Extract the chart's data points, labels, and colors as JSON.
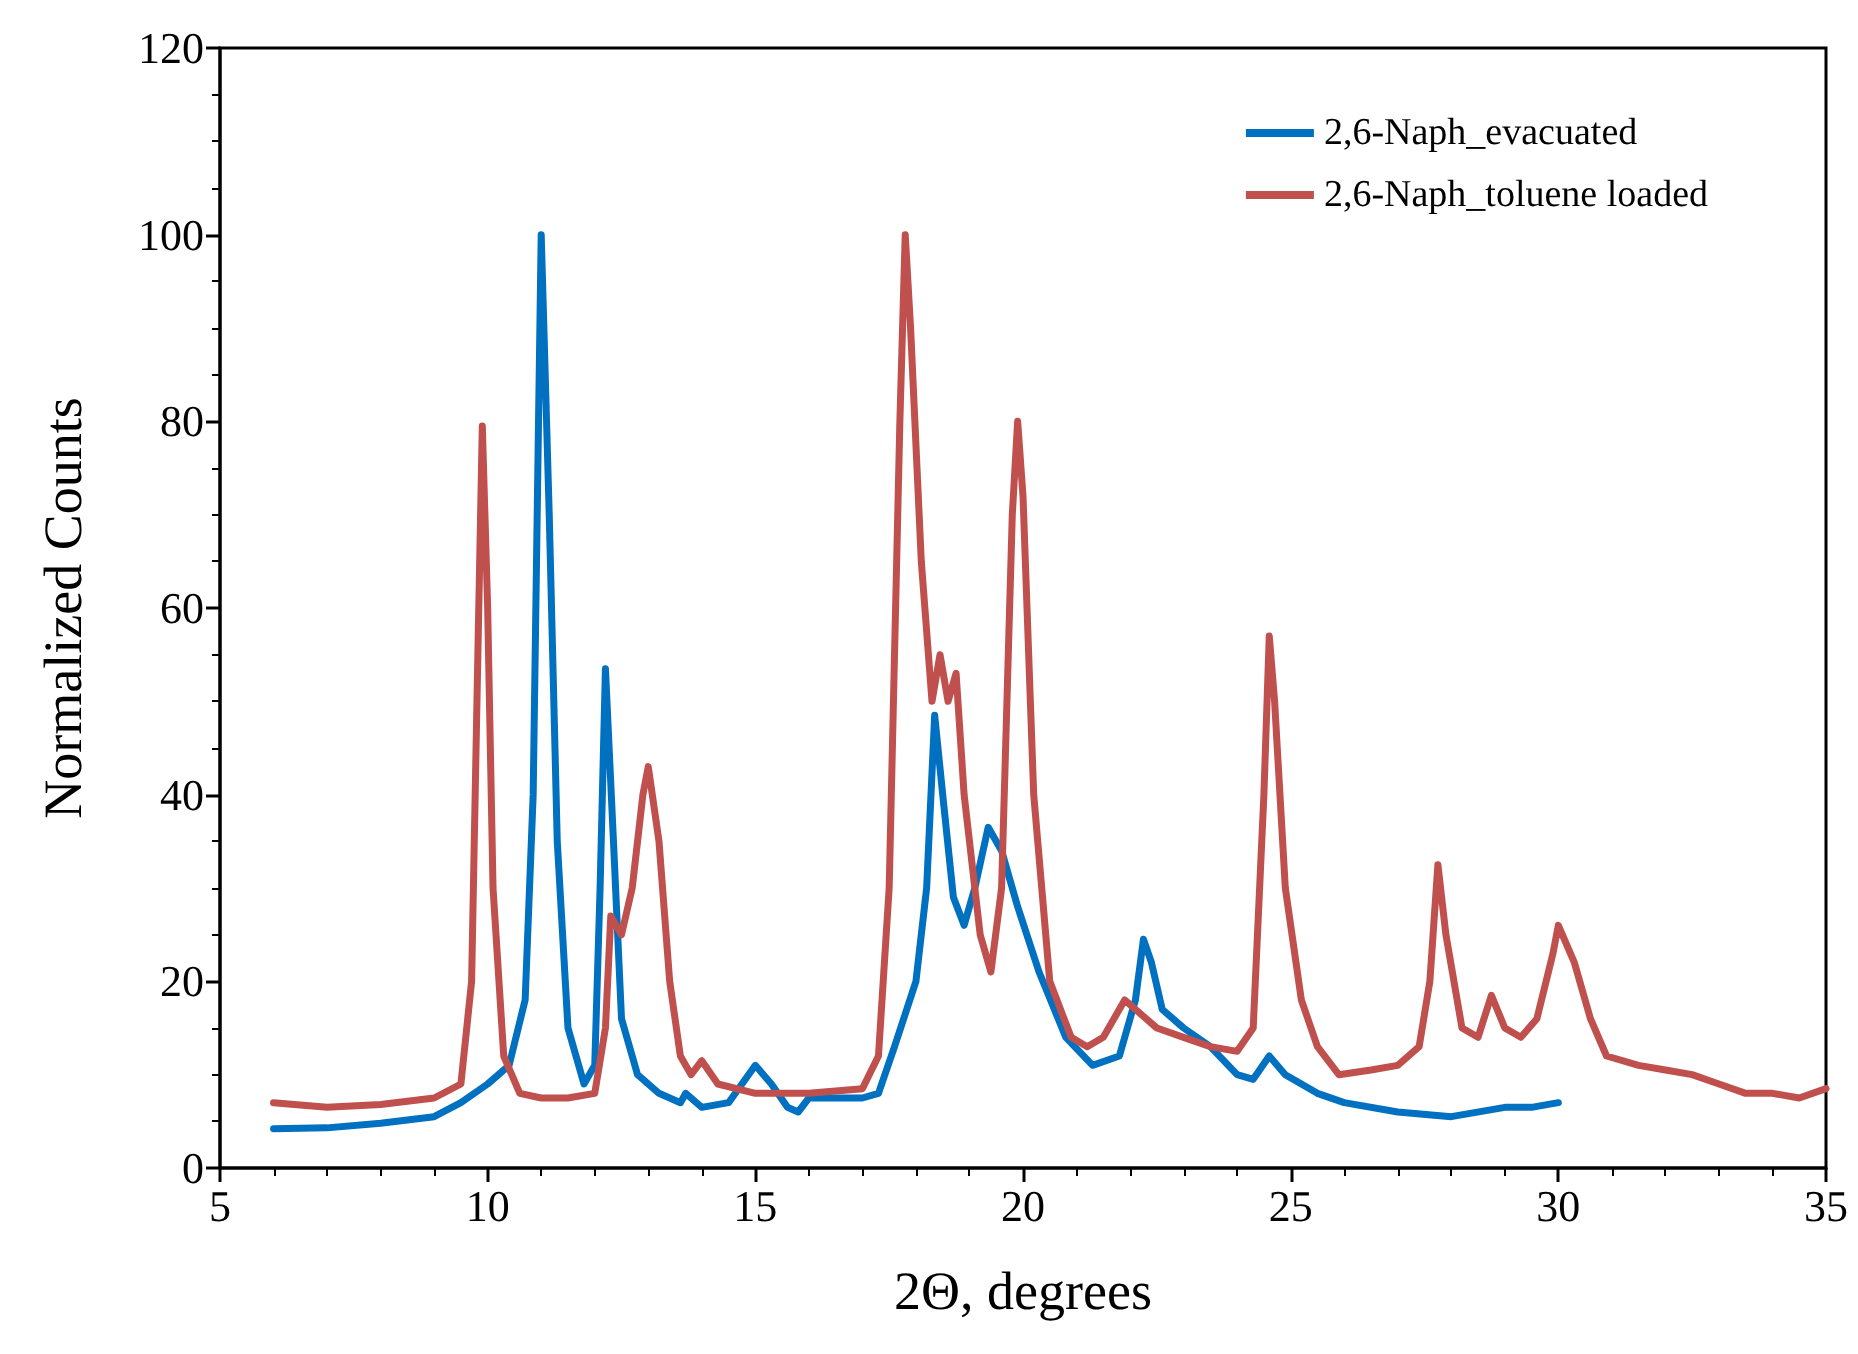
{
  "chart_data": {
    "type": "line",
    "xlabel": "2Θ, degrees",
    "ylabel": "Normalized Counts",
    "xlim": [
      5,
      35
    ],
    "xticks": [
      5,
      10,
      15,
      20,
      25,
      30,
      35
    ],
    "ylim": [
      0,
      120
    ],
    "yticks": [
      0,
      20,
      40,
      60,
      80,
      100,
      120
    ],
    "grid": false,
    "legend": "top right",
    "marker": "none",
    "line_style": "solid",
    "series": [
      {
        "name": "2,6-Naph_evacuated",
        "color": "#0070c0",
        "x": [
          6,
          7,
          8,
          9,
          9.5,
          10,
          10.4,
          10.7,
          10.85,
          11,
          11.15,
          11.3,
          11.5,
          11.8,
          12,
          12.1,
          12.2,
          12.35,
          12.5,
          12.8,
          13.2,
          13.6,
          13.7,
          14,
          14.5,
          15,
          15.3,
          15.6,
          15.8,
          16,
          16.5,
          17,
          17.3,
          17.6,
          18,
          18.2,
          18.35,
          18.5,
          18.7,
          18.9,
          19.1,
          19.35,
          19.6,
          19.9,
          20.3,
          20.8,
          21.3,
          21.8,
          22.1,
          22.25,
          22.4,
          22.6,
          23,
          23.5,
          24,
          24.3,
          24.6,
          24.9,
          25.5,
          26,
          27,
          28,
          29,
          29.5,
          30
        ],
        "values": [
          4.2,
          4.3,
          4.8,
          5.5,
          7,
          9,
          11,
          18,
          40,
          100,
          70,
          35,
          15,
          9,
          11,
          30,
          53.5,
          35,
          16,
          10,
          8,
          7,
          8,
          6.5,
          7,
          11,
          9,
          6.5,
          6,
          7.5,
          7.5,
          7.5,
          8,
          13,
          20,
          30,
          48.5,
          40,
          29,
          26,
          30,
          36.5,
          34,
          28,
          21,
          14,
          11,
          12,
          18,
          24.5,
          22,
          17,
          15,
          13,
          10,
          9.5,
          12,
          10,
          8,
          7,
          6,
          5.5,
          6.5,
          6.5,
          7
        ]
      },
      {
        "name": "2,6-Naph_toluene loaded",
        "color": "#c0504d",
        "x": [
          6,
          7,
          8,
          9,
          9.5,
          9.7,
          9.8,
          9.9,
          10,
          10.1,
          10.3,
          10.6,
          11,
          11.5,
          12,
          12.2,
          12.3,
          12.5,
          12.7,
          12.9,
          13,
          13.2,
          13.4,
          13.6,
          13.8,
          14,
          14.3,
          15,
          16,
          17,
          17.3,
          17.5,
          17.7,
          17.8,
          17.9,
          18.1,
          18.3,
          18.45,
          18.6,
          18.75,
          18.9,
          19.2,
          19.4,
          19.6,
          19.8,
          19.9,
          20,
          20.2,
          20.5,
          20.9,
          21.2,
          21.5,
          21.9,
          22.1,
          22.5,
          23,
          23.5,
          24,
          24.3,
          24.5,
          24.6,
          24.7,
          24.9,
          25.2,
          25.5,
          25.9,
          26.5,
          27,
          27.4,
          27.6,
          27.75,
          27.9,
          28.2,
          28.5,
          28.75,
          29,
          29.3,
          29.6,
          29.9,
          30,
          30.3,
          30.6,
          30.9,
          31.5,
          32,
          32.5,
          33,
          33.5,
          34,
          34.5,
          35
        ],
        "values": [
          7,
          6.5,
          6.8,
          7.5,
          9,
          20,
          50,
          79.5,
          60,
          30,
          12,
          8,
          7.5,
          7.5,
          8,
          15,
          27,
          25,
          30,
          40,
          43,
          35,
          20,
          12,
          10,
          11.5,
          9,
          8,
          8,
          8.5,
          12,
          30,
          80,
          100,
          90,
          65,
          50,
          55,
          50,
          53,
          40,
          25,
          21,
          30,
          70,
          80,
          72,
          40,
          20,
          14,
          13,
          14,
          18,
          17,
          15,
          14,
          13,
          12.5,
          15,
          40,
          57,
          50,
          30,
          18,
          13,
          10,
          10.5,
          11,
          13,
          20,
          32.5,
          25,
          15,
          14,
          18.5,
          15,
          14,
          16,
          23,
          26,
          22,
          16,
          12,
          11,
          10.5,
          10,
          9,
          8,
          8,
          7.5,
          8.5
        ]
      }
    ]
  }
}
